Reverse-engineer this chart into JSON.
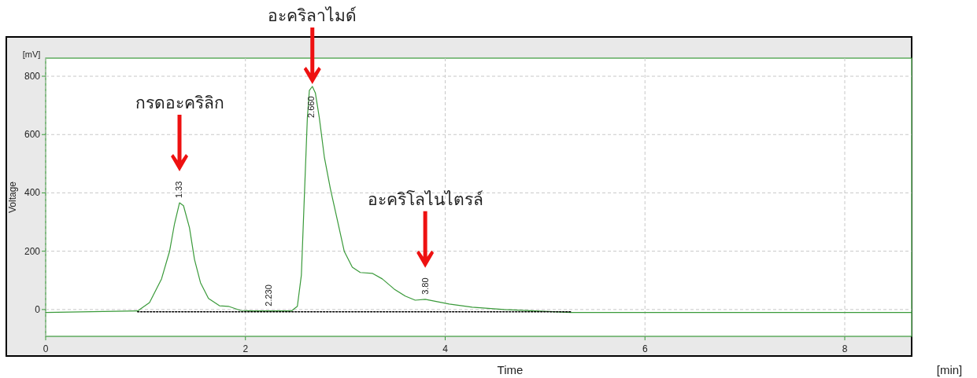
{
  "chart_data": {
    "type": "line",
    "xlabel": "Time",
    "ylabel": "Voltage",
    "xlim": [
      0,
      8.67
    ],
    "ylim": [
      -92,
      862
    ],
    "xticks": [
      0,
      2,
      4,
      6,
      8
    ],
    "yticks": [
      0,
      200,
      400,
      600,
      800
    ],
    "grid": true,
    "marker": "none",
    "series": [
      {
        "color": "#3a9a3a",
        "line_style": "solid",
        "x": [
          0,
          0.92,
          1.04,
          1.16,
          1.24,
          1.29,
          1.34,
          1.38,
          1.44,
          1.49,
          1.55,
          1.63,
          1.74,
          1.83,
          1.95,
          2.07,
          2.22,
          2.46,
          2.52,
          2.56,
          2.59,
          2.62,
          2.64,
          2.67,
          2.7,
          2.74,
          2.79,
          2.85,
          2.92,
          2.99,
          3.07,
          3.15,
          3.27,
          3.37,
          3.49,
          3.6,
          3.7,
          3.8,
          3.92,
          4.04,
          4.27,
          4.59,
          4.9,
          5.26,
          8.67
        ],
        "values": [
          -10,
          -5,
          24,
          105,
          199,
          294,
          366,
          356,
          280,
          172,
          92,
          38,
          13,
          11,
          -3,
          -5,
          -5,
          -5,
          11,
          118,
          388,
          657,
          751,
          765,
          743,
          657,
          523,
          415,
          307,
          199,
          145,
          127,
          124,
          105,
          70,
          46,
          32,
          35,
          27,
          19,
          8,
          0,
          -5,
          -10,
          -10
        ]
      },
      {
        "color": "#000000",
        "line_style": "dotted",
        "x": [
          0.92,
          5.26
        ],
        "values": [
          -8,
          -8
        ]
      }
    ],
    "annotations": [
      "[mV]",
      "[min]",
      {
        "text": "1.33",
        "x": 1.33,
        "y": 366
      },
      {
        "text": "2.230",
        "x": 2.23,
        "y": -5
      },
      {
        "text": "2.660",
        "x": 2.66,
        "y": 765
      },
      {
        "text": "3.80",
        "x": 3.8,
        "y": 35
      },
      "กรดอะคริลิก",
      "อะคริลาไมด์",
      "อะคริโลไนไตรล์"
    ]
  }
}
